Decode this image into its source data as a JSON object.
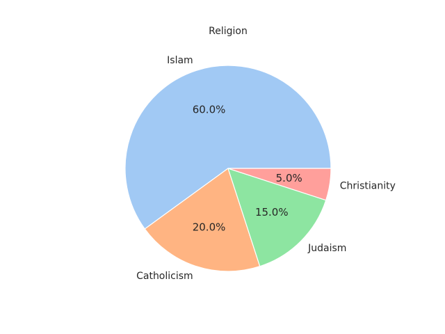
{
  "chart_data": {
    "type": "pie",
    "title": "Religion",
    "categories": [
      "Islam",
      "Catholicism",
      "Judaism",
      "Christianity"
    ],
    "values": [
      60.0,
      20.0,
      15.0,
      5.0
    ],
    "value_labels": [
      "60.0%",
      "20.0%",
      "15.0%",
      "5.0%"
    ],
    "colors": [
      "#a1c9f4",
      "#ffb482",
      "#8de5a1",
      "#ff9f9b"
    ],
    "start_angle_deg": 0,
    "direction": "counterclockwise",
    "legend": "none"
  }
}
